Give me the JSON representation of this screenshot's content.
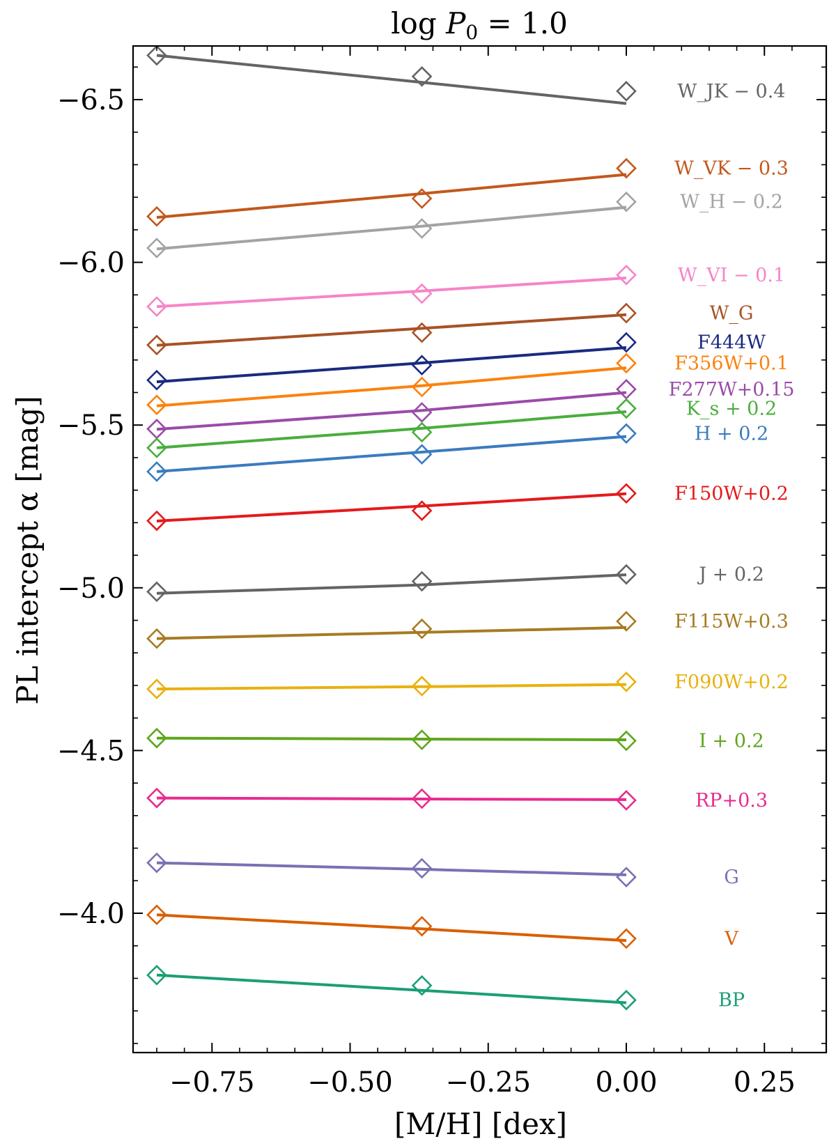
{
  "chart_data": {
    "type": "line",
    "title": "log P_0 = 1.0",
    "title_parts": {
      "prefix": "log ",
      "var": "P",
      "sub": "0",
      "suffix": " = 1.0"
    },
    "xlabel": "[M/H] [dex]",
    "ylabel": "PL intercept α [mag]",
    "xlim": [
      -0.88,
      0.35
    ],
    "ylim": [
      -3.6,
      -6.67
    ],
    "y_inverted": true,
    "x_ticks": [
      -0.75,
      -0.5,
      -0.25,
      0.0,
      0.25
    ],
    "x_tick_labels": [
      "−0.75",
      "−0.50",
      "−0.25",
      "0.00",
      "0.25"
    ],
    "y_ticks": [
      -6.5,
      -6.0,
      -5.5,
      -5.0,
      -4.5,
      -4.0
    ],
    "y_tick_labels": [
      "−6.5",
      "−6.0",
      "−5.5",
      "−5.0",
      "−4.5",
      "−4.0"
    ],
    "x": [
      -0.85,
      -0.37,
      0.0
    ],
    "marker": "open-diamond",
    "series": [
      {
        "name": "W_JK − 0.4",
        "color": "#646464",
        "points": [
          -6.636,
          -6.571,
          -6.526
        ],
        "fit": [
          -6.636,
          -6.553,
          -6.488
        ]
      },
      {
        "name": "W_VK − 0.3",
        "color": "#c2581c",
        "points": [
          -6.141,
          -6.196,
          -6.289
        ],
        "fit": [
          -6.138,
          -6.211,
          -6.27
        ]
      },
      {
        "name": "W_H − 0.2",
        "color": "#a3a3a3",
        "points": [
          -6.044,
          -6.104,
          -6.186
        ],
        "fit": [
          -6.041,
          -6.111,
          -6.169
        ]
      },
      {
        "name": "W_VI − 0.1",
        "color": "#f585c8",
        "points": [
          -5.864,
          -5.904,
          -5.961
        ],
        "fit": [
          -5.864,
          -5.912,
          -5.952
        ]
      },
      {
        "name": "W_G",
        "color": "#a85226",
        "points": [
          -5.746,
          -5.784,
          -5.844
        ],
        "fit": [
          -5.745,
          -5.797,
          -5.839
        ]
      },
      {
        "name": "F444W",
        "color": "#1b2a80",
        "points": [
          -5.638,
          -5.684,
          -5.754
        ],
        "fit": [
          -5.633,
          -5.691,
          -5.738
        ]
      },
      {
        "name": "F356W+0.1",
        "color": "#fb820f",
        "points": [
          -5.562,
          -5.617,
          -5.69
        ],
        "fit": [
          -5.559,
          -5.621,
          -5.676
        ]
      },
      {
        "name": "F277W+0.15",
        "color": "#9a4ba8",
        "points": [
          -5.488,
          -5.539,
          -5.61
        ],
        "fit": [
          -5.487,
          -5.545,
          -5.6
        ]
      },
      {
        "name": "K_s + 0.2",
        "color": "#4aad3d",
        "points": [
          -5.43,
          -5.478,
          -5.551
        ],
        "fit": [
          -5.43,
          -5.49,
          -5.541
        ]
      },
      {
        "name": "H + 0.2",
        "color": "#3b7bbf",
        "points": [
          -5.357,
          -5.41,
          -5.474
        ],
        "fit": [
          -5.357,
          -5.417,
          -5.465
        ]
      },
      {
        "name": "F150W+0.2",
        "color": "#e41a1c",
        "points": [
          -5.206,
          -5.237,
          -5.29
        ],
        "fit": [
          -5.205,
          -5.251,
          -5.289
        ]
      },
      {
        "name": "J + 0.2",
        "color": "#646464",
        "points": [
          -4.988,
          -5.02,
          -5.041
        ],
        "fit": [
          -4.983,
          -5.009,
          -5.04
        ]
      },
      {
        "name": "F115W+0.3",
        "color": "#a67b23",
        "points": [
          -4.844,
          -4.874,
          -4.897
        ],
        "fit": [
          -4.844,
          -4.863,
          -4.878
        ]
      },
      {
        "name": "F090W+0.2",
        "color": "#e8b10e",
        "points": [
          -4.689,
          -4.698,
          -4.711
        ],
        "fit": [
          -4.689,
          -4.696,
          -4.703
        ]
      },
      {
        "name": "I + 0.2",
        "color": "#5fa61d",
        "points": [
          -4.538,
          -4.533,
          -4.53
        ],
        "fit": [
          -4.538,
          -4.535,
          -4.533
        ]
      },
      {
        "name": "RP+0.3",
        "color": "#e72c8f",
        "points": [
          -4.354,
          -4.352,
          -4.347
        ],
        "fit": [
          -4.354,
          -4.351,
          -4.349
        ]
      },
      {
        "name": "G",
        "color": "#7872b3",
        "points": [
          -4.155,
          -4.138,
          -4.111
        ],
        "fit": [
          -4.155,
          -4.135,
          -4.118
        ]
      },
      {
        "name": "V",
        "color": "#d95f02",
        "points": [
          -3.995,
          -3.96,
          -3.922
        ],
        "fit": [
          -3.995,
          -3.952,
          -3.916
        ]
      },
      {
        "name": "BP",
        "color": "#1b9e77",
        "points": [
          -3.81,
          -3.778,
          -3.733
        ],
        "fit": [
          -3.81,
          -3.763,
          -3.725
        ]
      }
    ]
  }
}
